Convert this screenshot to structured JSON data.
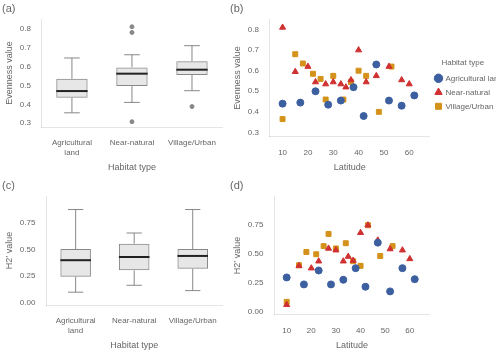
{
  "chart_data": [
    {
      "type": "box",
      "title": "(a)",
      "x_label": "Habitat type",
      "y_label": "Evenness value",
      "categories": [
        "Agricultural land",
        "Near-natural",
        "Village/Urban"
      ],
      "color": "#888888",
      "values": [
        {
          "median": 0.47,
          "q1": 0.435,
          "q3": 0.535,
          "whislo": 0.355,
          "whishi": 0.645,
          "fliers": []
        },
        {
          "median": 0.562,
          "q1": 0.497,
          "q3": 0.595,
          "whislo": 0.41,
          "whishi": 0.662,
          "fliers": [
            0.308,
            0.78,
            0.81
          ]
        },
        {
          "median": 0.583,
          "q1": 0.555,
          "q3": 0.628,
          "whislo": 0.472,
          "whishi": 0.71,
          "fliers": [
            0.388
          ]
        }
      ],
      "ylim": [
        0.28,
        0.85
      ],
      "yticks": [
        0.3,
        0.4,
        0.5,
        0.6,
        0.7,
        0.8
      ],
      "grid": false
    },
    {
      "type": "scatter",
      "title": "(b)",
      "x_label": "Latitude",
      "y_label": "Evenness value",
      "series": [
        {
          "name": "Agricultural land",
          "color": "#3C5FA0",
          "marker": "circle",
          "x": [
            10,
            17,
            23,
            28,
            33,
            38,
            42,
            47,
            52,
            57,
            62
          ],
          "values": [
            0.44,
            0.445,
            0.5,
            0.435,
            0.455,
            0.52,
            0.38,
            0.63,
            0.455,
            0.43,
            0.48
          ]
        },
        {
          "name": "Near-natural",
          "color": "#D03030",
          "marker": "triangle",
          "x": [
            10,
            15,
            20,
            23,
            27,
            30,
            33,
            35,
            37,
            40,
            43,
            47,
            52,
            57,
            60
          ],
          "values": [
            0.81,
            0.595,
            0.62,
            0.545,
            0.535,
            0.545,
            0.535,
            0.52,
            0.555,
            0.7,
            0.545,
            0.575,
            0.62,
            0.555,
            0.535
          ]
        },
        {
          "name": "Village/Urban",
          "color": "#D4921A",
          "marker": "square",
          "x": [
            10,
            15,
            18,
            22,
            25,
            27,
            30,
            34,
            37,
            40,
            43,
            48,
            53
          ],
          "values": [
            0.365,
            0.68,
            0.635,
            0.585,
            0.56,
            0.46,
            0.575,
            0.46,
            0.545,
            0.6,
            0.575,
            0.4,
            0.62
          ]
        }
      ],
      "xlim": [
        5,
        68
      ],
      "xticks": [
        10,
        20,
        30,
        40,
        50,
        60
      ],
      "ylim": [
        0.28,
        0.85
      ],
      "yticks": [
        0.3,
        0.4,
        0.5,
        0.6,
        0.7,
        0.8
      ],
      "legend": "right",
      "legend_title": "Habitat type",
      "grid": false
    },
    {
      "type": "box",
      "title": "(c)",
      "x_label": "Habitat type",
      "y_label": "H2’ value",
      "categories": [
        "Agricultural land",
        "Near-natural",
        "Village/Urban"
      ],
      "color": "#888888",
      "values": [
        {
          "median": 0.4,
          "q1": 0.245,
          "q3": 0.505,
          "whislo": 0.1,
          "whishi": 0.875,
          "fliers": []
        },
        {
          "median": 0.43,
          "q1": 0.305,
          "q3": 0.555,
          "whislo": 0.165,
          "whishi": 0.655,
          "fliers": []
        },
        {
          "median": 0.44,
          "q1": 0.32,
          "q3": 0.505,
          "whislo": 0.115,
          "whishi": 0.875,
          "fliers": []
        }
      ],
      "ylim": [
        -0.02,
        1.0
      ],
      "yticks": [
        {
          "value": 0,
          "label": "0.00"
        },
        0.25,
        {
          "value": 0.5,
          "label": "0.50"
        },
        0.75
      ],
      "grid": false
    },
    {
      "type": "scatter",
      "title": "(d)",
      "x_label": "Latitude",
      "y_label": "H2’ value",
      "series": [
        {
          "name": "Agricultural land",
          "color": "#3C5FA0",
          "marker": "circle",
          "x": [
            10,
            17,
            23,
            28,
            33,
            38,
            42,
            47,
            52,
            57,
            62
          ],
          "values": [
            0.3,
            0.24,
            0.36,
            0.24,
            0.28,
            0.38,
            0.22,
            0.6,
            0.18,
            0.38,
            0.285
          ]
        },
        {
          "name": "Near-natural",
          "color": "#D03030",
          "marker": "triangle",
          "x": [
            10,
            15,
            20,
            23,
            27,
            30,
            33,
            35,
            37,
            40,
            43,
            47,
            52,
            57,
            60
          ],
          "values": [
            0.065,
            0.4,
            0.38,
            0.44,
            0.55,
            0.535,
            0.44,
            0.48,
            0.445,
            0.685,
            0.75,
            0.62,
            0.545,
            0.535,
            0.46
          ]
        },
        {
          "name": "Village/Urban",
          "color": "#D4921A",
          "marker": "square",
          "x": [
            10,
            15,
            18,
            22,
            25,
            27,
            30,
            34,
            37,
            40,
            43,
            48,
            53
          ],
          "values": [
            0.09,
            0.405,
            0.52,
            0.5,
            0.57,
            0.675,
            0.55,
            0.595,
            0.44,
            0.4,
            0.75,
            0.485,
            0.57
          ]
        }
      ],
      "xlim": [
        5,
        68
      ],
      "xticks": [
        10,
        20,
        30,
        40,
        50,
        60
      ],
      "ylim": [
        -0.02,
        1.0
      ],
      "yticks": [
        {
          "value": 0,
          "label": "0.00"
        },
        0.25,
        {
          "value": 0.5,
          "label": "0.50"
        },
        0.75
      ],
      "grid": false
    }
  ]
}
